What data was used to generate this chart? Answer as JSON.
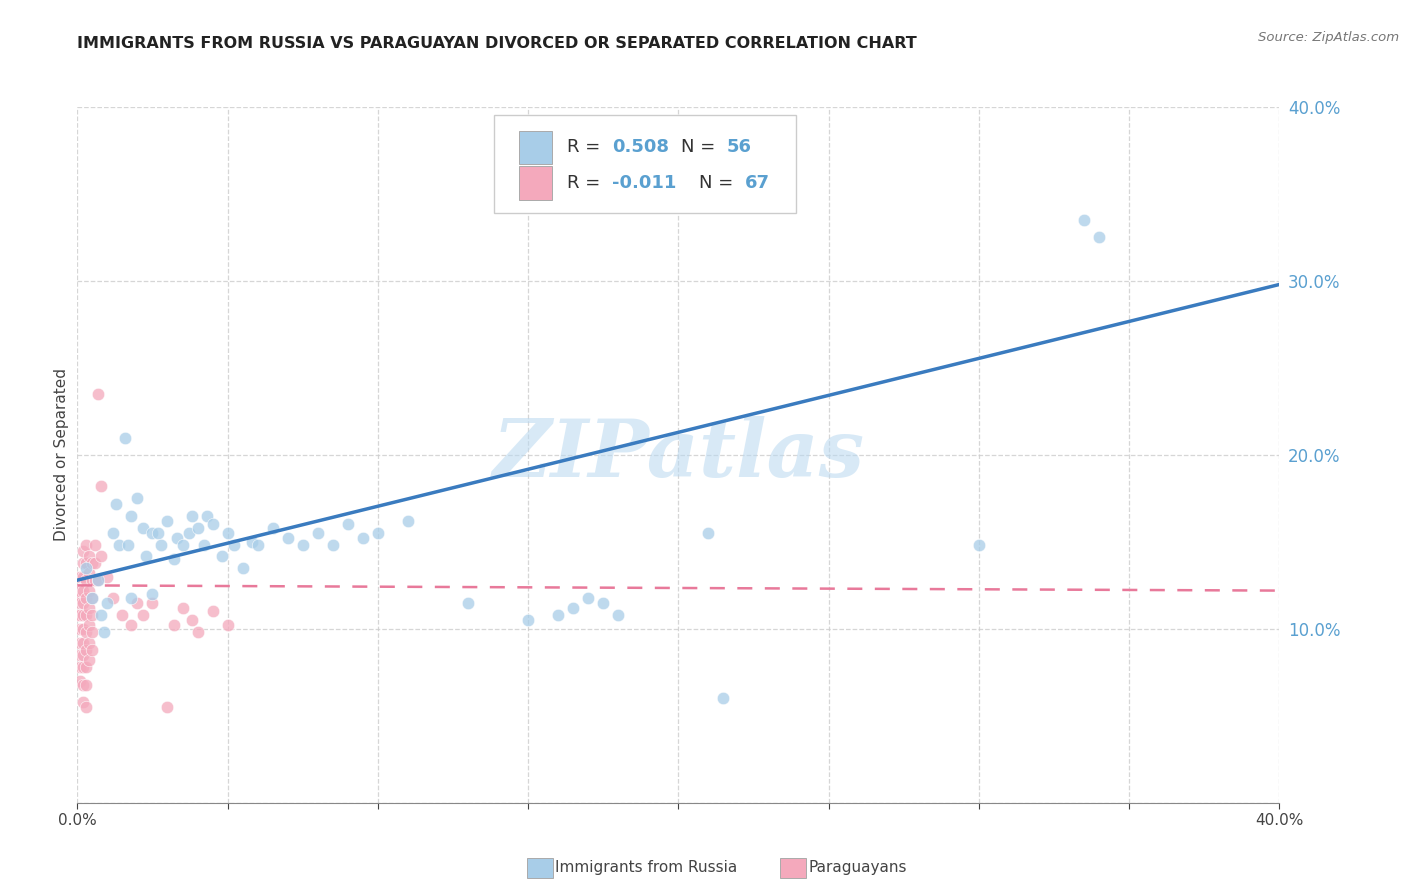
{
  "title": "IMMIGRANTS FROM RUSSIA VS PARAGUAYAN DIVORCED OR SEPARATED CORRELATION CHART",
  "source": "Source: ZipAtlas.com",
  "ylabel": "Divorced or Separated",
  "xlim": [
    0.0,
    0.4
  ],
  "ylim": [
    0.0,
    0.4
  ],
  "x_ticks": [
    0.0,
    0.05,
    0.1,
    0.15,
    0.2,
    0.25,
    0.3,
    0.35,
    0.4
  ],
  "y_ticks": [
    0.0,
    0.1,
    0.2,
    0.3,
    0.4
  ],
  "watermark": "ZIPatlas",
  "legend_blue_R": "0.508",
  "legend_blue_N": "56",
  "legend_pink_R": "-0.011",
  "legend_pink_N": "67",
  "legend_label_blue": "Immigrants from Russia",
  "legend_label_pink": "Paraguayans",
  "blue_color": "#a8cde8",
  "pink_color": "#f4a9bc",
  "blue_line_color": "#3a7bbf",
  "pink_line_color": "#e8799a",
  "right_tick_color": "#5aa0d0",
  "blue_scatter": [
    [
      0.003,
      0.135
    ],
    [
      0.005,
      0.118
    ],
    [
      0.007,
      0.128
    ],
    [
      0.008,
      0.108
    ],
    [
      0.009,
      0.098
    ],
    [
      0.01,
      0.115
    ],
    [
      0.012,
      0.155
    ],
    [
      0.013,
      0.172
    ],
    [
      0.014,
      0.148
    ],
    [
      0.016,
      0.21
    ],
    [
      0.017,
      0.148
    ],
    [
      0.018,
      0.165
    ],
    [
      0.018,
      0.118
    ],
    [
      0.02,
      0.175
    ],
    [
      0.022,
      0.158
    ],
    [
      0.023,
      0.142
    ],
    [
      0.025,
      0.155
    ],
    [
      0.025,
      0.12
    ],
    [
      0.027,
      0.155
    ],
    [
      0.028,
      0.148
    ],
    [
      0.03,
      0.162
    ],
    [
      0.032,
      0.14
    ],
    [
      0.033,
      0.152
    ],
    [
      0.035,
      0.148
    ],
    [
      0.037,
      0.155
    ],
    [
      0.038,
      0.165
    ],
    [
      0.04,
      0.158
    ],
    [
      0.042,
      0.148
    ],
    [
      0.043,
      0.165
    ],
    [
      0.045,
      0.16
    ],
    [
      0.048,
      0.142
    ],
    [
      0.05,
      0.155
    ],
    [
      0.052,
      0.148
    ],
    [
      0.055,
      0.135
    ],
    [
      0.058,
      0.15
    ],
    [
      0.06,
      0.148
    ],
    [
      0.065,
      0.158
    ],
    [
      0.07,
      0.152
    ],
    [
      0.075,
      0.148
    ],
    [
      0.08,
      0.155
    ],
    [
      0.085,
      0.148
    ],
    [
      0.09,
      0.16
    ],
    [
      0.095,
      0.152
    ],
    [
      0.1,
      0.155
    ],
    [
      0.11,
      0.162
    ],
    [
      0.13,
      0.115
    ],
    [
      0.15,
      0.105
    ],
    [
      0.16,
      0.108
    ],
    [
      0.165,
      0.112
    ],
    [
      0.17,
      0.118
    ],
    [
      0.175,
      0.115
    ],
    [
      0.18,
      0.108
    ],
    [
      0.21,
      0.155
    ],
    [
      0.215,
      0.06
    ],
    [
      0.3,
      0.148
    ],
    [
      0.335,
      0.335
    ],
    [
      0.34,
      0.325
    ]
  ],
  "pink_scatter": [
    [
      0.0,
      0.118
    ],
    [
      0.0,
      0.108
    ],
    [
      0.001,
      0.13
    ],
    [
      0.001,
      0.122
    ],
    [
      0.001,
      0.115
    ],
    [
      0.001,
      0.108
    ],
    [
      0.001,
      0.1
    ],
    [
      0.001,
      0.092
    ],
    [
      0.001,
      0.085
    ],
    [
      0.001,
      0.078
    ],
    [
      0.001,
      0.07
    ],
    [
      0.002,
      0.145
    ],
    [
      0.002,
      0.138
    ],
    [
      0.002,
      0.13
    ],
    [
      0.002,
      0.122
    ],
    [
      0.002,
      0.115
    ],
    [
      0.002,
      0.108
    ],
    [
      0.002,
      0.1
    ],
    [
      0.002,
      0.092
    ],
    [
      0.002,
      0.085
    ],
    [
      0.002,
      0.078
    ],
    [
      0.002,
      0.068
    ],
    [
      0.002,
      0.058
    ],
    [
      0.003,
      0.148
    ],
    [
      0.003,
      0.138
    ],
    [
      0.003,
      0.128
    ],
    [
      0.003,
      0.118
    ],
    [
      0.003,
      0.108
    ],
    [
      0.003,
      0.098
    ],
    [
      0.003,
      0.088
    ],
    [
      0.003,
      0.078
    ],
    [
      0.003,
      0.068
    ],
    [
      0.003,
      0.055
    ],
    [
      0.004,
      0.142
    ],
    [
      0.004,
      0.132
    ],
    [
      0.004,
      0.122
    ],
    [
      0.004,
      0.112
    ],
    [
      0.004,
      0.102
    ],
    [
      0.004,
      0.092
    ],
    [
      0.004,
      0.082
    ],
    [
      0.005,
      0.138
    ],
    [
      0.005,
      0.128
    ],
    [
      0.005,
      0.118
    ],
    [
      0.005,
      0.108
    ],
    [
      0.005,
      0.098
    ],
    [
      0.005,
      0.088
    ],
    [
      0.006,
      0.148
    ],
    [
      0.006,
      0.138
    ],
    [
      0.006,
      0.128
    ],
    [
      0.007,
      0.235
    ],
    [
      0.007,
      0.128
    ],
    [
      0.008,
      0.182
    ],
    [
      0.008,
      0.142
    ],
    [
      0.01,
      0.13
    ],
    [
      0.012,
      0.118
    ],
    [
      0.015,
      0.108
    ],
    [
      0.018,
      0.102
    ],
    [
      0.02,
      0.115
    ],
    [
      0.022,
      0.108
    ],
    [
      0.025,
      0.115
    ],
    [
      0.03,
      0.055
    ],
    [
      0.032,
      0.102
    ],
    [
      0.035,
      0.112
    ],
    [
      0.038,
      0.105
    ],
    [
      0.04,
      0.098
    ],
    [
      0.045,
      0.11
    ],
    [
      0.05,
      0.102
    ]
  ],
  "blue_trendline": [
    [
      0.0,
      0.128
    ],
    [
      0.4,
      0.298
    ]
  ],
  "pink_trendline": [
    [
      0.0,
      0.125
    ],
    [
      0.4,
      0.122
    ]
  ]
}
